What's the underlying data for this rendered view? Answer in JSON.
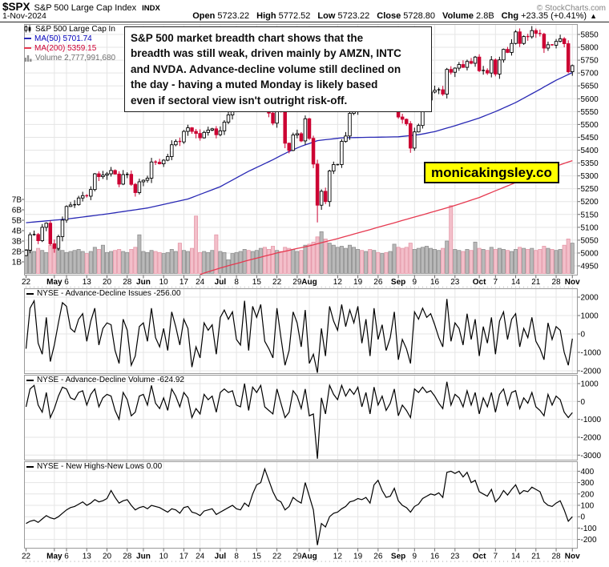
{
  "header": {
    "symbol": "$SPX",
    "name": "S&P 500 Large Cap Index",
    "exchange": "INDX",
    "credit": "© StockCharts.com",
    "date": "1-Nov-2024",
    "quote": [
      {
        "label": "Open",
        "value": "5723.22"
      },
      {
        "label": "High",
        "value": "5772.52"
      },
      {
        "label": "Low",
        "value": "5723.22"
      },
      {
        "label": "Close",
        "value": "5728.80"
      },
      {
        "label": "Volume",
        "value": "2.8B"
      },
      {
        "label": "Chg",
        "value": "+23.35 (+0.41%)"
      }
    ],
    "chg_arrow": "▲"
  },
  "legend": {
    "title": "S&P 500 Large Cap In",
    "ma50": "MA(50) 5701.74",
    "ma200": "MA(200) 5359.15",
    "volume": "Volume 2,777,991,680"
  },
  "annotation": {
    "text": "S&P 500 market breadth chart shows that the\nbreadth was still weak, driven mainly by AMZN, INTC\nand NVDA. Advance-decline volume still declined on\nthe day - having a muted Monday is likely based\neven if sectoral view isn't outright risk-off."
  },
  "watermark": "monicakingsley.co",
  "colors": {
    "down": "#cc0233",
    "up_fill": "#ffffff",
    "up_stroke": "#000000",
    "ma50": "#2828b4",
    "ma200": "#e63950",
    "vol_up_fill": "#b9b9b9",
    "vol_up_stroke": "#8f8f8f",
    "vol_down_fill": "#f3bfca",
    "vol_down_stroke": "#e598a8",
    "grid": "#e5e5e5",
    "border": "#9a9a9a",
    "watermark_bg": "#ffff00"
  },
  "chart_data": [
    {
      "type": "candlestick+volume",
      "title": "S&P 500 Large Cap Index",
      "ylim": [
        4915,
        5880
      ],
      "yticks": [
        5850,
        5800,
        5750,
        5700,
        5650,
        5600,
        5550,
        5500,
        5450,
        5400,
        5350,
        5300,
        5250,
        5200,
        5150,
        5100,
        5050,
        5000,
        4950
      ],
      "volume_ticks": [
        "7B",
        "6B",
        "5B",
        "4B",
        "3B",
        "2B",
        "1B"
      ],
      "x_axis": [
        {
          "i": 0,
          "t": "22"
        },
        {
          "i": 7,
          "t": "May",
          "m": true
        },
        {
          "i": 10,
          "t": "6"
        },
        {
          "i": 15,
          "t": "13"
        },
        {
          "i": 20,
          "t": "20"
        },
        {
          "i": 25,
          "t": "28"
        },
        {
          "i": 29,
          "t": "Jun",
          "m": true
        },
        {
          "i": 34,
          "t": "10"
        },
        {
          "i": 39,
          "t": "17"
        },
        {
          "i": 43,
          "t": "24"
        },
        {
          "i": 48,
          "t": "Jul",
          "m": true
        },
        {
          "i": 52,
          "t": "8"
        },
        {
          "i": 57,
          "t": "15"
        },
        {
          "i": 62,
          "t": "22"
        },
        {
          "i": 67,
          "t": "29"
        },
        {
          "i": 70,
          "t": "Aug",
          "m": true
        },
        {
          "i": 77,
          "t": "12"
        },
        {
          "i": 82,
          "t": "19"
        },
        {
          "i": 87,
          "t": "26"
        },
        {
          "i": 92,
          "t": "Sep",
          "m": true
        },
        {
          "i": 96,
          "t": "9"
        },
        {
          "i": 101,
          "t": "16"
        },
        {
          "i": 106,
          "t": "23"
        },
        {
          "i": 112,
          "t": "Oct",
          "m": true
        },
        {
          "i": 116,
          "t": "7"
        },
        {
          "i": 121,
          "t": "14"
        },
        {
          "i": 126,
          "t": "21"
        },
        {
          "i": 131,
          "t": "28"
        },
        {
          "i": 135,
          "t": "Nov",
          "m": true
        }
      ],
      "first_open": 4990,
      "closes": [
        5011,
        5071,
        5072,
        5048,
        5100,
        5116,
        5036,
        5018,
        5064,
        5128,
        5181,
        5187,
        5188,
        5214,
        5223,
        5221,
        5247,
        5308,
        5297,
        5303,
        5308,
        5321,
        5307,
        5268,
        5305,
        5306,
        5267,
        5235,
        5277,
        5283,
        5291,
        5354,
        5353,
        5347,
        5361,
        5375,
        5421,
        5434,
        5432,
        5473,
        5487,
        5473,
        5465,
        5448,
        5469,
        5478,
        5483,
        5460,
        5475,
        5509,
        5537,
        5567,
        5573,
        5577,
        5634,
        5585,
        5615,
        5631,
        5667,
        5588,
        5544,
        5505,
        5564,
        5556,
        5427,
        5399,
        5459,
        5464,
        5436,
        5522,
        5446,
        5346,
        5186,
        5240,
        5200,
        5319,
        5344,
        5344,
        5434,
        5455,
        5543,
        5554,
        5608,
        5597,
        5620,
        5571,
        5635,
        5616,
        5626,
        5592,
        5592,
        5648,
        5529,
        5520,
        5503,
        5408,
        5471,
        5496,
        5554,
        5595,
        5626,
        5633,
        5635,
        5618,
        5714,
        5703,
        5719,
        5733,
        5722,
        5745,
        5738,
        5762,
        5709,
        5710,
        5700,
        5751,
        5696,
        5751,
        5792,
        5780,
        5815,
        5860,
        5815,
        5842,
        5841,
        5865,
        5854,
        5851,
        5797,
        5810,
        5808,
        5823,
        5833,
        5814,
        5705,
        5728.8
      ],
      "volumes_billions": [
        2.2,
        2.1,
        2.0,
        2.3,
        2.1,
        1.9,
        2.6,
        2.3,
        2.2,
        2.1,
        1.9,
        2.0,
        2.1,
        2.2,
        2.0,
        1.8,
        2.0,
        2.4,
        2.2,
        2.6,
        1.9,
        2.0,
        2.1,
        2.2,
        2.0,
        1.9,
        2.2,
        2.4,
        3.6,
        2.0,
        1.9,
        2.1,
        2.0,
        1.9,
        1.8,
        1.9,
        2.2,
        2.0,
        2.8,
        2.1,
        2.0,
        2.3,
        5.4,
        1.9,
        2.0,
        1.9,
        2.1,
        3.6,
        2.0,
        1.9,
        1.2,
        1.8,
        1.9,
        2.0,
        2.2,
        2.1,
        2.0,
        2.1,
        2.3,
        2.4,
        2.2,
        2.5,
        2.1,
        2.0,
        2.4,
        2.3,
        2.2,
        2.0,
        2.1,
        2.6,
        2.7,
        2.9,
        3.4,
        3.9,
        3.2,
        2.8,
        2.6,
        2.4,
        2.5,
        2.3,
        2.6,
        2.4,
        2.2,
        2.1,
        2.0,
        2.2,
        2.1,
        1.9,
        1.8,
        1.9,
        2.0,
        2.7,
        2.4,
        2.3,
        2.4,
        2.8,
        2.2,
        2.3,
        2.4,
        2.5,
        2.3,
        2.2,
        2.1,
        2.3,
        3.0,
        6.4,
        2.2,
        2.1,
        2.0,
        2.2,
        2.1,
        2.9,
        2.3,
        2.2,
        2.1,
        2.4,
        2.2,
        2.3,
        2.2,
        2.1,
        2.0,
        2.2,
        2.4,
        2.3,
        2.2,
        2.3,
        2.1,
        2.2,
        2.5,
        2.3,
        2.2,
        2.1,
        2.2,
        2.6,
        3.2,
        2.8
      ],
      "ma50_anchors": [
        [
          0,
          5118
        ],
        [
          10,
          5132
        ],
        [
          20,
          5152
        ],
        [
          30,
          5175
        ],
        [
          40,
          5210
        ],
        [
          48,
          5258
        ],
        [
          55,
          5318
        ],
        [
          60,
          5355
        ],
        [
          65,
          5395
        ],
        [
          68,
          5415
        ],
        [
          72,
          5437
        ],
        [
          78,
          5448
        ],
        [
          85,
          5450
        ],
        [
          92,
          5452
        ],
        [
          97,
          5460
        ],
        [
          101,
          5472
        ],
        [
          106,
          5495
        ],
        [
          112,
          5525
        ],
        [
          116,
          5550
        ],
        [
          121,
          5585
        ],
        [
          126,
          5628
        ],
        [
          131,
          5672
        ],
        [
          135,
          5701.74
        ]
      ],
      "ma200_anchors": [
        [
          40,
          4900
        ],
        [
          44,
          4922
        ],
        [
          48,
          4942
        ],
        [
          55,
          4972
        ],
        [
          62,
          5000
        ],
        [
          70,
          5028
        ],
        [
          77,
          5056
        ],
        [
          82,
          5078
        ],
        [
          87,
          5100
        ],
        [
          92,
          5122
        ],
        [
          96,
          5140
        ],
        [
          101,
          5162
        ],
        [
          106,
          5185
        ],
        [
          112,
          5216
        ],
        [
          116,
          5242
        ],
        [
          121,
          5274
        ],
        [
          126,
          5306
        ],
        [
          131,
          5338
        ],
        [
          135,
          5359.15
        ]
      ]
    },
    {
      "type": "line",
      "title": "NYSE - Advance-Decline Issues",
      "label_full": "NYSE - Advance-Decline Issues -256.00",
      "last_value": -256.0,
      "ylim": [
        -2450,
        2450
      ],
      "yticks": [
        2000,
        1000,
        0,
        -1000,
        -2000
      ],
      "values": [
        -800,
        1400,
        1800,
        -500,
        -1100,
        900,
        -1500,
        -600,
        600,
        1700,
        1500,
        300,
        100,
        800,
        1100,
        -400,
        700,
        1400,
        -600,
        300,
        600,
        500,
        -900,
        -1600,
        800,
        200,
        -1700,
        -1200,
        400,
        600,
        -400,
        1400,
        -200,
        -700,
        300,
        -900,
        1200,
        400,
        -600,
        800,
        300,
        -1800,
        -700,
        -1300,
        600,
        200,
        500,
        -1100,
        900,
        1300,
        800,
        1200,
        -300,
        -600,
        1800,
        -900,
        1500,
        900,
        1600,
        -400,
        -800,
        -1300,
        1400,
        -200,
        -1700,
        -900,
        1200,
        600,
        -700,
        1300,
        -1600,
        -1100,
        -2250,
        300,
        -1200,
        1500,
        700,
        200,
        1600,
        400,
        1300,
        600,
        1500,
        -500,
        800,
        -1200,
        1400,
        -300,
        500,
        -900,
        -200,
        1200,
        -1400,
        -300,
        -800,
        -1600,
        1200,
        800,
        1400,
        900,
        1100,
        500,
        -200,
        -700,
        1900,
        -400,
        600,
        300,
        -600,
        1100,
        -300,
        800,
        -1200,
        400,
        -500,
        900,
        -1100,
        700,
        1200,
        -300,
        800,
        1100,
        -700,
        300,
        -200,
        900,
        -400,
        -800,
        -1400,
        600,
        -300,
        400,
        200,
        -1000,
        -1700,
        -256
      ]
    },
    {
      "type": "line",
      "title": "NYSE - Advance-Decline Volume",
      "label_full": "NYSE - Advance-Decline Volume -624.92",
      "last_value": -624.92,
      "ylim": [
        -3300,
        1450
      ],
      "yticks": [
        1000,
        0,
        -1000,
        -2000,
        -3000
      ],
      "values": [
        -300,
        700,
        900,
        -200,
        -600,
        500,
        -900,
        -400,
        300,
        800,
        700,
        200,
        100,
        500,
        600,
        -200,
        400,
        700,
        -300,
        200,
        400,
        300,
        -500,
        -1000,
        500,
        100,
        -800,
        -600,
        300,
        400,
        -200,
        900,
        -100,
        -400,
        200,
        -500,
        700,
        300,
        -300,
        500,
        200,
        -900,
        -400,
        -700,
        400,
        100,
        300,
        -600,
        500,
        700,
        500,
        600,
        -200,
        -300,
        1000,
        -500,
        800,
        500,
        900,
        -300,
        -500,
        -700,
        700,
        -100,
        -900,
        -600,
        600,
        300,
        -400,
        700,
        -800,
        -700,
        -3200,
        200,
        -700,
        900,
        400,
        100,
        900,
        300,
        700,
        400,
        800,
        -300,
        500,
        -700,
        800,
        -200,
        300,
        -500,
        -100,
        700,
        -800,
        -200,
        -500,
        -900,
        700,
        500,
        800,
        500,
        600,
        300,
        -100,
        -400,
        1100,
        -200,
        400,
        200,
        -300,
        600,
        -200,
        500,
        -700,
        200,
        -300,
        500,
        -600,
        400,
        700,
        -200,
        500,
        600,
        -400,
        200,
        -100,
        500,
        -300,
        -500,
        -800,
        400,
        -200,
        300,
        100,
        -600,
        -900,
        -624.92
      ]
    },
    {
      "type": "line",
      "title": "NYSE - New Highs-New Lows",
      "label_full": "NYSE - New Highs-New Lows 0.00",
      "last_value": 0.0,
      "ylim": [
        -275,
        485
      ],
      "yticks": [
        400,
        300,
        200,
        100,
        0,
        -100,
        -200
      ],
      "values": [
        -60,
        -40,
        -30,
        -50,
        -20,
        10,
        -10,
        -20,
        0,
        30,
        60,
        80,
        90,
        110,
        130,
        100,
        120,
        150,
        130,
        140,
        160,
        230,
        170,
        120,
        140,
        150,
        100,
        60,
        80,
        90,
        70,
        100,
        90,
        80,
        60,
        40,
        70,
        60,
        30,
        80,
        90,
        40,
        30,
        10,
        50,
        60,
        70,
        20,
        40,
        60,
        80,
        100,
        70,
        60,
        120,
        90,
        200,
        280,
        300,
        420,
        320,
        220,
        150,
        130,
        60,
        90,
        170,
        140,
        120,
        300,
        180,
        60,
        -250,
        -60,
        -90,
        0,
        30,
        40,
        70,
        90,
        130,
        140,
        160,
        150,
        170,
        120,
        280,
        320,
        230,
        170,
        180,
        250,
        140,
        100,
        80,
        40,
        90,
        110,
        160,
        180,
        200,
        190,
        210,
        170,
        390,
        400,
        380,
        400,
        350,
        390,
        300,
        320,
        220,
        200,
        180,
        240,
        130,
        170,
        230,
        190,
        240,
        280,
        200,
        230,
        220,
        260,
        240,
        220,
        130,
        100,
        90,
        120,
        140,
        60,
        -40,
        0
      ]
    }
  ]
}
